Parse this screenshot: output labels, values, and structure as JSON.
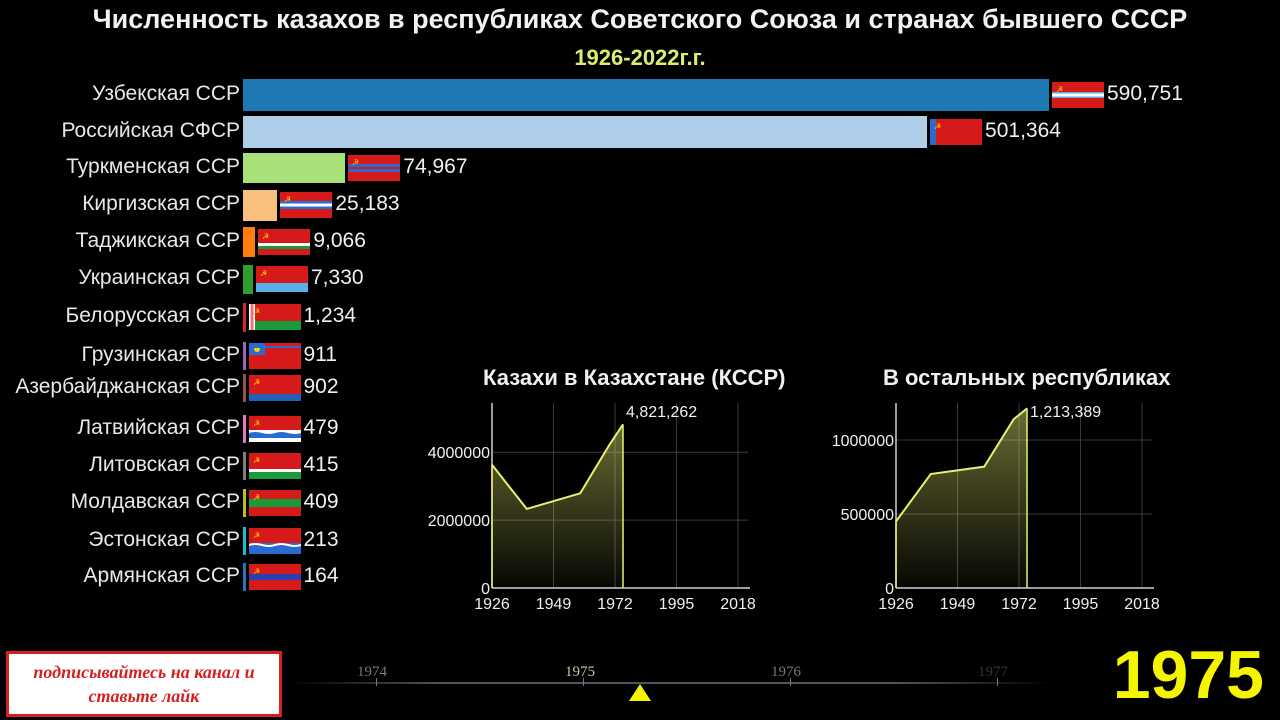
{
  "header": {
    "title": "Численность казахов в республиках Советского Союза и странах бывшего СССР",
    "subtitle": "1926-2022г.г."
  },
  "current_year": "1975",
  "subscribe_lines": [
    "подписывайтесь на канал и",
    "ставьте лайк"
  ],
  "timeline": {
    "labels": [
      "1974",
      "1975",
      "1976",
      "1977"
    ]
  },
  "chart_data": [
    {
      "type": "bar",
      "orientation": "horizontal",
      "title": "",
      "categories": [
        "Узбекская ССР",
        "Российская СФСР",
        "Туркменская ССР",
        "Киргизская ССР",
        "Таджикская ССР",
        "Украинская ССР",
        "Белорусская ССР",
        "Грузинская ССР",
        "Азербайджанская ССР",
        "Латвийская ССР",
        "Литовская ССР",
        "Молдавская ССР",
        "Эстонская ССР",
        "Армянская ССР"
      ],
      "values": [
        590751,
        501364,
        74967,
        25183,
        9066,
        7330,
        1234,
        911,
        902,
        479,
        415,
        409,
        213,
        164
      ],
      "value_labels": [
        "590,751",
        "501,364",
        "74,967",
        "25,183",
        "9,066",
        "7,330",
        "1,234",
        "911",
        "902",
        "479",
        "415",
        "409",
        "213",
        "164"
      ],
      "colors": [
        "#1f77b4",
        "#aecde8",
        "#a8e07a",
        "#f9c07e",
        "#ff7f0e",
        "#2ca02c",
        "#d62728",
        "#9467bd",
        "#8c564b",
        "#e377c2",
        "#7f7f7f",
        "#bcbd22",
        "#17becf",
        "#1f77b4"
      ],
      "flags": [
        "uzbek-ssr-flag",
        "rsfsr-flag",
        "turkmen-ssr-flag",
        "kirghiz-ssr-flag",
        "tajik-ssr-flag",
        "ukrainian-ssr-flag",
        "byelorussian-ssr-flag",
        "georgian-ssr-flag",
        "azerbaijan-ssr-flag",
        "latvian-ssr-flag",
        "lithuanian-ssr-flag",
        "moldavian-ssr-flag",
        "estonian-ssr-flag",
        "armenian-ssr-flag"
      ]
    },
    {
      "type": "area",
      "title": "Казахи в Казахстане (КССР)",
      "x": [
        1926,
        1939,
        1959,
        1970,
        1975
      ],
      "y": [
        3630000,
        2330000,
        2790000,
        4230000,
        4821262
      ],
      "last_label": "4,821,262",
      "xticks": [
        1926,
        1949,
        1972,
        1995,
        2018
      ],
      "yticks": [
        0,
        2000000,
        4000000
      ],
      "ytick_labels": [
        "0",
        "2000000",
        "4000000"
      ],
      "xlim": [
        1926,
        2018
      ],
      "ylim": [
        0,
        5450000
      ],
      "grid": true,
      "color": "#e8f070"
    },
    {
      "type": "area",
      "title": "В остальных республиках",
      "x": [
        1926,
        1939,
        1959,
        1970,
        1975
      ],
      "y": [
        450000,
        770000,
        820000,
        1140000,
        1213389
      ],
      "last_label": "1,213,389",
      "xticks": [
        1926,
        1949,
        1972,
        1995,
        2018
      ],
      "yticks": [
        0,
        500000,
        1000000
      ],
      "ytick_labels": [
        "0",
        "500000",
        "1000000"
      ],
      "xlim": [
        1926,
        2018
      ],
      "ylim": [
        0,
        1250000
      ],
      "grid": true,
      "color": "#e8f070"
    }
  ]
}
